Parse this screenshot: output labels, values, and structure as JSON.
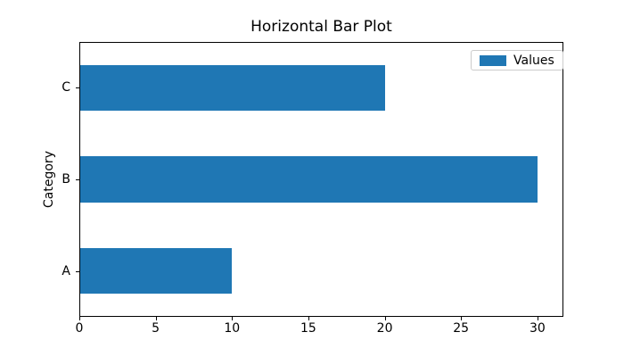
{
  "chart_data": {
    "type": "bar",
    "orientation": "horizontal",
    "title": "Horizontal Bar Plot",
    "xlabel": "",
    "ylabel": "Category",
    "categories": [
      "A",
      "B",
      "C"
    ],
    "series": [
      {
        "name": "Values",
        "values": [
          10,
          30,
          20
        ]
      }
    ],
    "x_ticks": [
      0,
      5,
      10,
      15,
      20,
      25,
      30
    ],
    "xlim": [
      0,
      31.7
    ],
    "bar_color": "#1f77b4",
    "bar_height_fraction": 0.5,
    "grid": false,
    "legend": {
      "entries": [
        "Values"
      ],
      "position": "upper right"
    }
  }
}
